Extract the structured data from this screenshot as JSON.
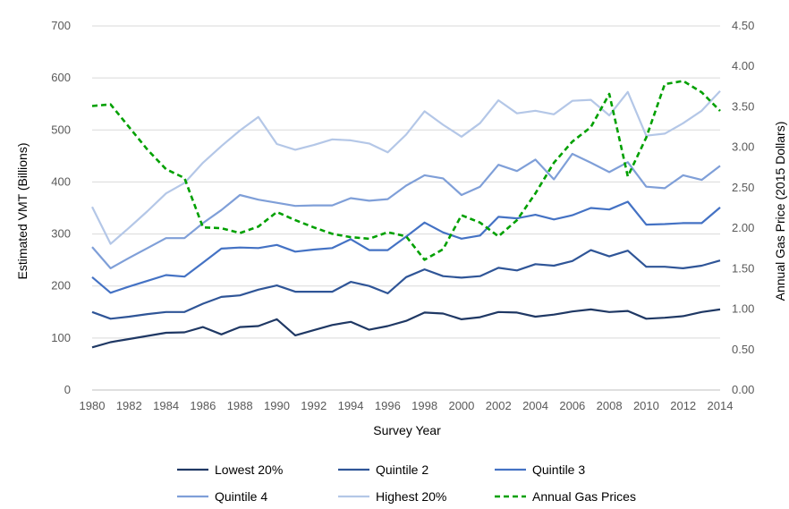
{
  "chart_data": {
    "type": "line",
    "title": "",
    "xlabel": "Survey Year",
    "ylabel": "Estimated VMT (Billions)",
    "y2label": "Annual Gas Price (2015 Dollars)",
    "ylim": [
      0,
      700
    ],
    "y2lim": [
      0,
      4.5
    ],
    "y_ticks": [
      "0",
      "100",
      "200",
      "300",
      "400",
      "500",
      "600",
      "700"
    ],
    "y2_ticks": [
      "0.00",
      "0.50",
      "1.00",
      "1.50",
      "2.00",
      "2.50",
      "3.00",
      "3.50",
      "4.00",
      "4.50"
    ],
    "x_ticks": [
      "1980",
      "1982",
      "1984",
      "1986",
      "1988",
      "1990",
      "1992",
      "1994",
      "1996",
      "1998",
      "2000",
      "2002",
      "2004",
      "2006",
      "2008",
      "2010",
      "2012",
      "2014"
    ],
    "grid": "horizontal",
    "legend_position": "bottom",
    "x": [
      1980,
      1981,
      1982,
      1983,
      1984,
      1985,
      1986,
      1987,
      1988,
      1989,
      1990,
      1991,
      1992,
      1993,
      1994,
      1995,
      1996,
      1997,
      1998,
      1999,
      2000,
      2001,
      2002,
      2003,
      2004,
      2005,
      2006,
      2007,
      2008,
      2009,
      2010,
      2011,
      2012,
      2013,
      2014
    ],
    "series": [
      {
        "name": "Lowest 20%",
        "axis": "left",
        "color": "#1f3864",
        "dash": "solid",
        "values": [
          82,
          92,
          98,
          104,
          110,
          111,
          121,
          107,
          121,
          123,
          136,
          105,
          115,
          125,
          131,
          116,
          123,
          133,
          149,
          147,
          136,
          140,
          150,
          149,
          141,
          145,
          151,
          155,
          150,
          152,
          137,
          139,
          142,
          150,
          155
        ]
      },
      {
        "name": "Quintile 2",
        "axis": "left",
        "color": "#2f5597",
        "dash": "solid",
        "values": [
          150,
          137,
          141,
          146,
          150,
          150,
          166,
          179,
          182,
          193,
          201,
          189,
          189,
          189,
          208,
          200,
          186,
          217,
          232,
          219,
          216,
          219,
          235,
          230,
          242,
          239,
          248,
          269,
          257,
          268,
          237,
          237,
          234,
          239,
          249
        ]
      },
      {
        "name": "Quintile 3",
        "axis": "left",
        "color": "#4472c4",
        "dash": "solid",
        "values": [
          217,
          187,
          199,
          210,
          221,
          218,
          245,
          272,
          274,
          273,
          279,
          266,
          270,
          273,
          290,
          269,
          269,
          295,
          322,
          303,
          291,
          297,
          333,
          330,
          337,
          328,
          336,
          350,
          347,
          362,
          318,
          319,
          321,
          321,
          351
        ]
      },
      {
        "name": "Quintile 4",
        "axis": "left",
        "color": "#7f9fd8",
        "dash": "solid",
        "values": [
          275,
          234,
          254,
          273,
          292,
          292,
          321,
          346,
          375,
          366,
          360,
          354,
          355,
          355,
          369,
          364,
          367,
          393,
          413,
          407,
          375,
          391,
          433,
          421,
          443,
          405,
          454,
          437,
          419,
          438,
          391,
          388,
          413,
          404,
          431
        ]
      },
      {
        "name": "Highest 20%",
        "axis": "left",
        "color": "#b4c7e7",
        "dash": "solid",
        "values": [
          352,
          281,
          312,
          344,
          378,
          398,
          437,
          469,
          499,
          525,
          473,
          462,
          471,
          482,
          480,
          474,
          457,
          491,
          536,
          510,
          487,
          513,
          557,
          532,
          537,
          530,
          556,
          558,
          528,
          573,
          489,
          493,
          513,
          537,
          575
        ]
      },
      {
        "name": "Annual Gas Prices",
        "axis": "right",
        "color": "#00a000",
        "dash": "dashed",
        "values": [
          3.51,
          3.53,
          3.25,
          2.97,
          2.73,
          2.62,
          2.01,
          2.0,
          1.94,
          2.02,
          2.2,
          2.1,
          2.01,
          1.93,
          1.89,
          1.87,
          1.95,
          1.9,
          1.61,
          1.74,
          2.16,
          2.07,
          1.9,
          2.1,
          2.43,
          2.81,
          3.07,
          3.25,
          3.66,
          2.64,
          3.12,
          3.78,
          3.82,
          3.68,
          3.45
        ]
      }
    ]
  }
}
